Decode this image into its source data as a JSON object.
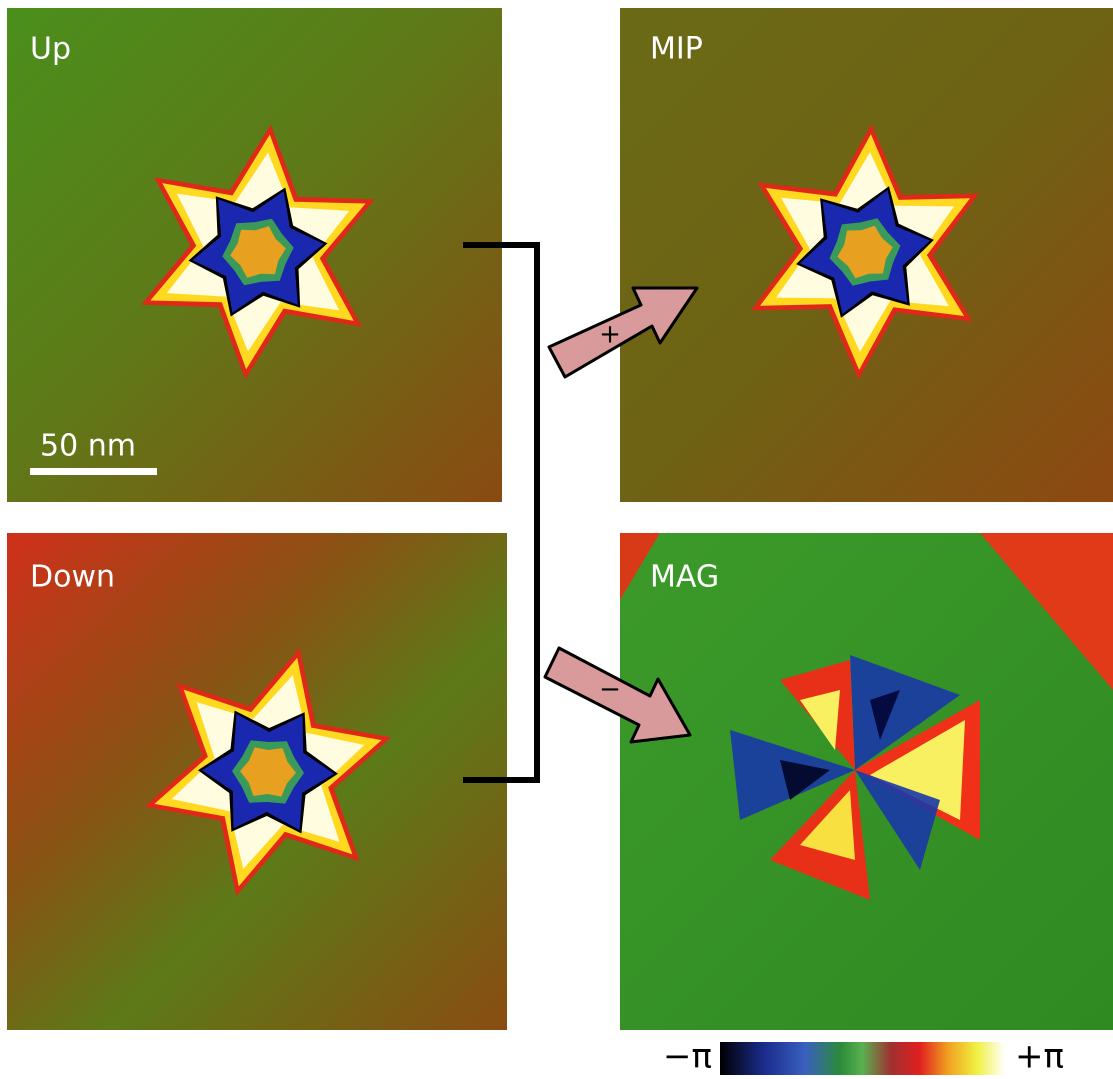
{
  "panels": [
    {
      "label": "Up"
    },
    {
      "label": "MIP"
    },
    {
      "label": "Down"
    },
    {
      "label": "MAG"
    }
  ],
  "scale_bar": "50 nm",
  "arrows": [
    {
      "sign": "+"
    },
    {
      "sign": "−"
    }
  ],
  "colorbar": {
    "min_label": "−π",
    "max_label": "+π"
  }
}
